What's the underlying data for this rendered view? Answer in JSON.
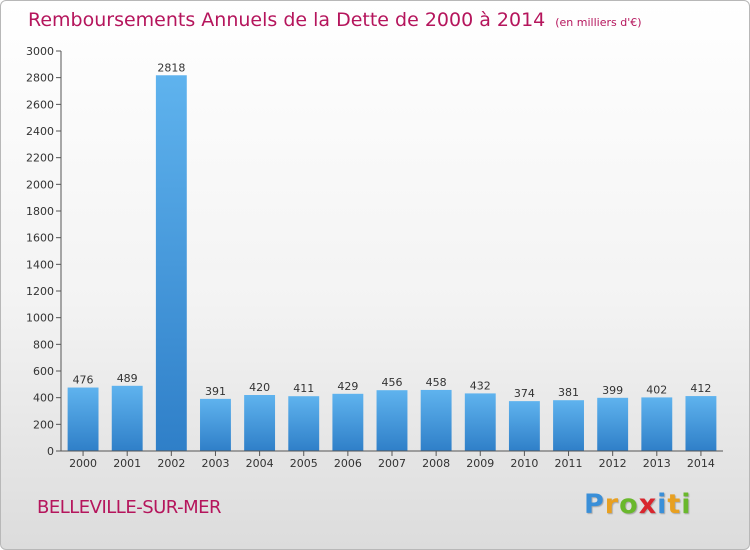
{
  "title": "Remboursements Annuels de la Dette de 2000 à 2014",
  "subtitle": "(en milliers d'€)",
  "location": "BELLEVILLE-SUR-MER",
  "logo": {
    "text": "Proxiti",
    "letters": [
      {
        "ch": "P",
        "color": "#3a8fd8"
      },
      {
        "ch": "r",
        "color": "#e8a020"
      },
      {
        "ch": "o",
        "color": "#6ab82c"
      },
      {
        "ch": "x",
        "color": "#d8262e"
      },
      {
        "ch": "i",
        "color": "#3a8fd8"
      },
      {
        "ch": "t",
        "color": "#e8a020"
      },
      {
        "ch": "i",
        "color": "#6ab82c"
      }
    ]
  },
  "colors": {
    "title": "#b5155c",
    "bar_top": "#5fb3ee",
    "bar_bottom": "#2f7fc8",
    "axis": "#555555"
  },
  "chart_data": {
    "type": "bar",
    "categories": [
      "2000",
      "2001",
      "2002",
      "2003",
      "2004",
      "2005",
      "2006",
      "2007",
      "2008",
      "2009",
      "2010",
      "2011",
      "2012",
      "2013",
      "2014"
    ],
    "values": [
      476,
      489,
      2818,
      391,
      420,
      411,
      429,
      456,
      458,
      432,
      374,
      381,
      399,
      402,
      412
    ],
    "ylim": [
      0,
      3000
    ],
    "yticks": [
      0,
      200,
      400,
      600,
      800,
      1000,
      1200,
      1400,
      1600,
      1800,
      2000,
      2200,
      2400,
      2600,
      2800,
      3000
    ],
    "grid": false,
    "data_labels": true
  }
}
